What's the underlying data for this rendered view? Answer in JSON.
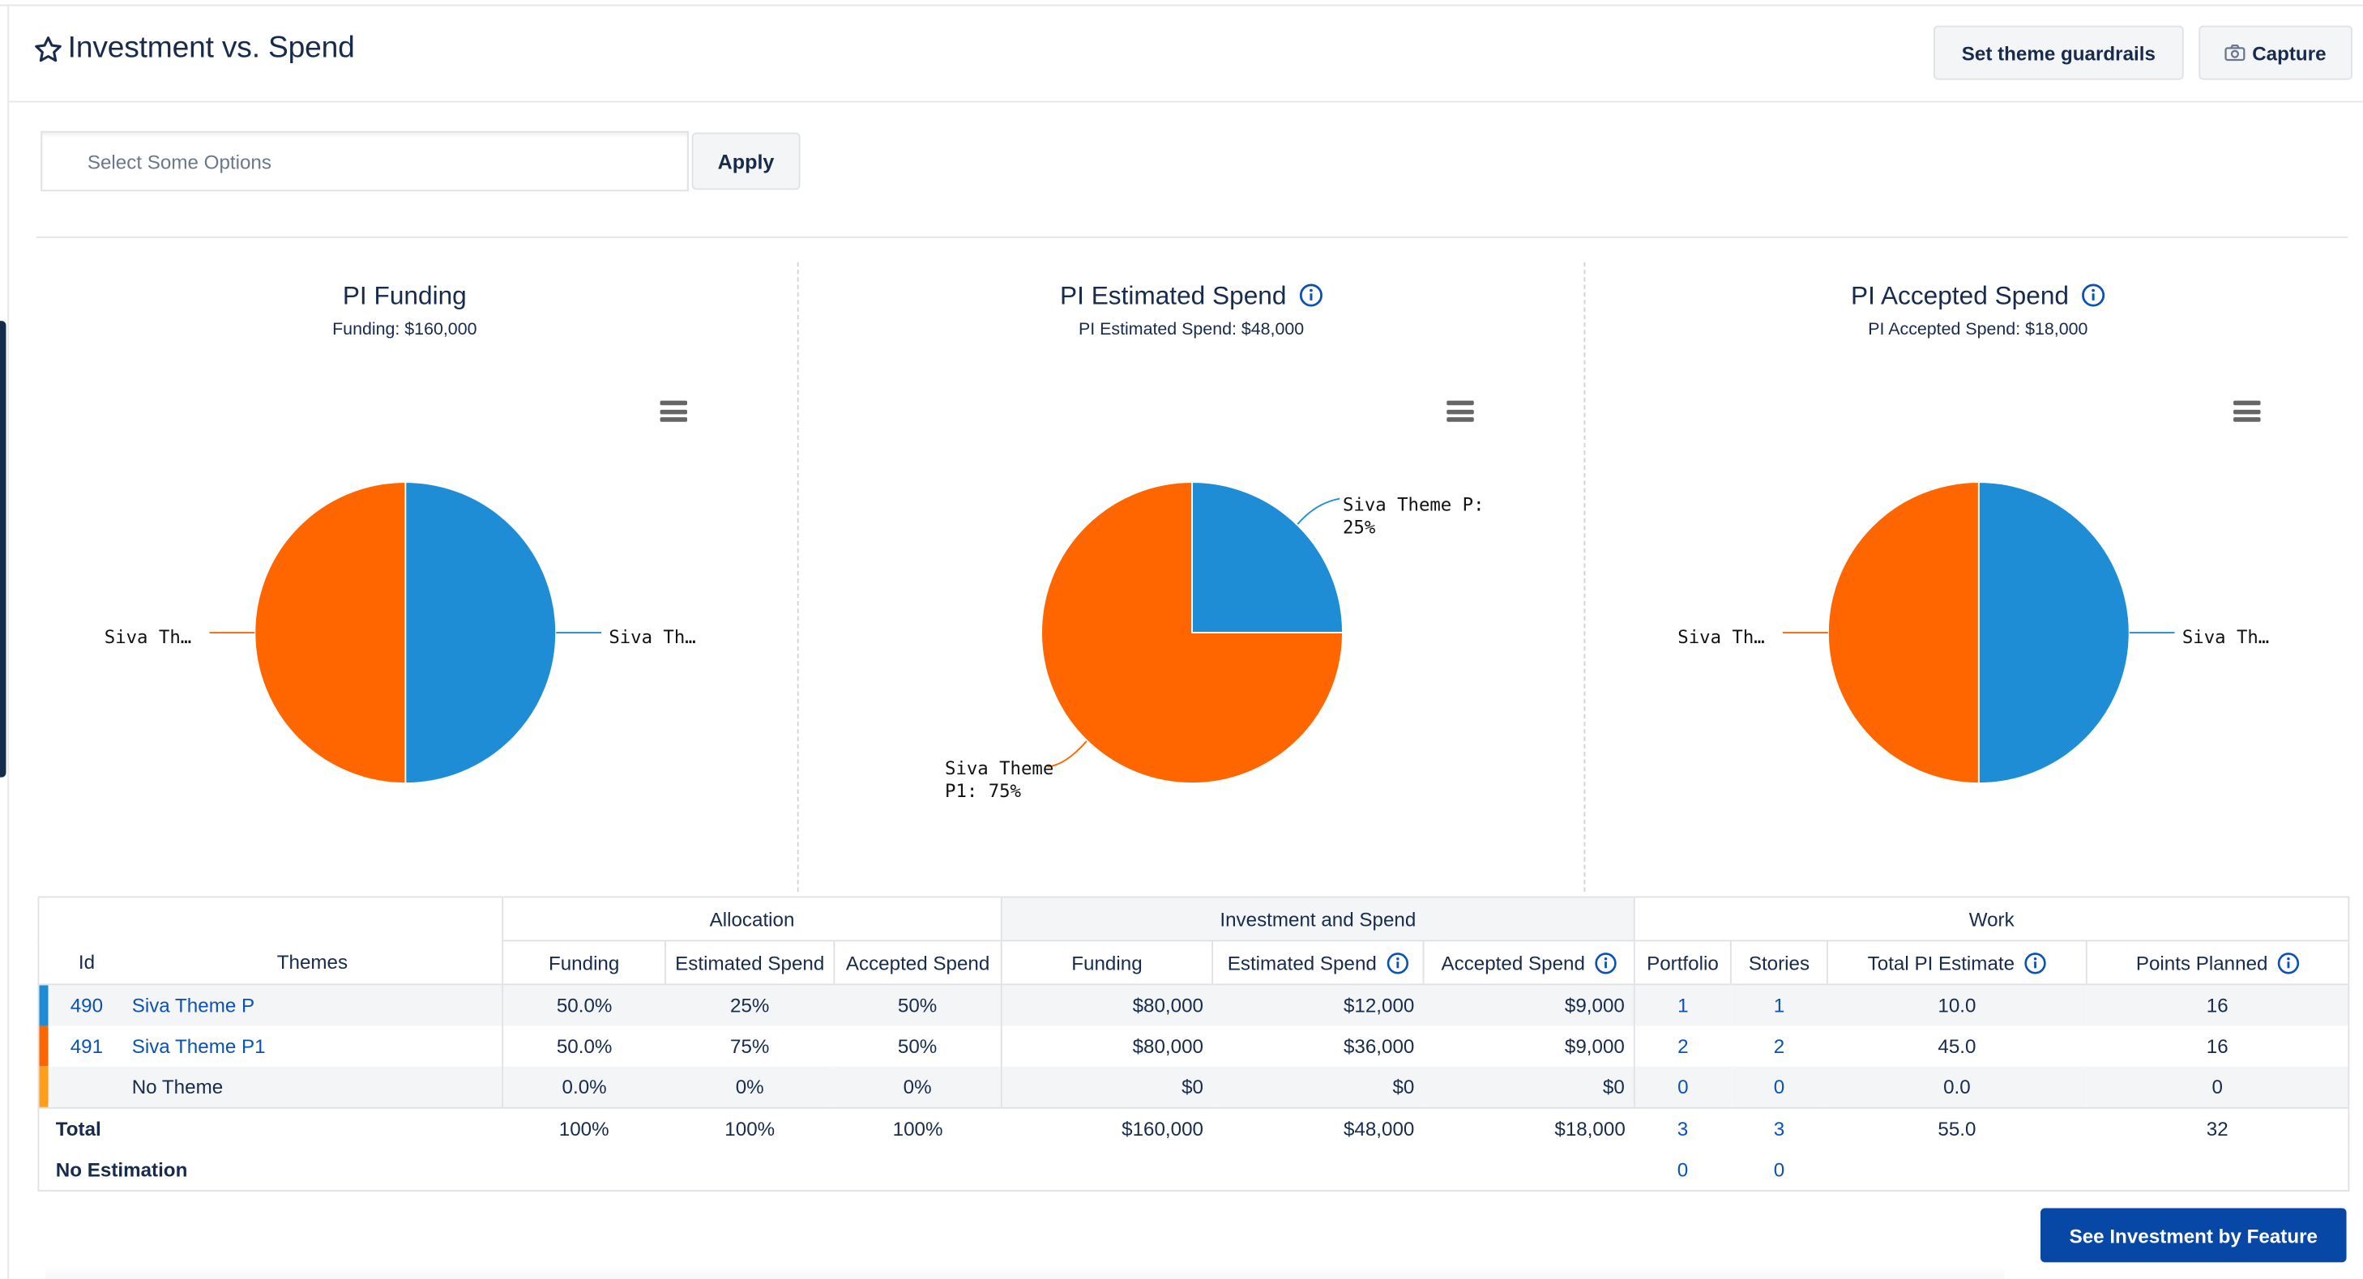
{
  "page": {
    "title": "Investment vs. Spend"
  },
  "header": {
    "guardrails_label": "Set theme guardrails",
    "capture_label": "Capture"
  },
  "filter": {
    "placeholder": "Select Some Options",
    "apply_label": "Apply"
  },
  "charts": [
    {
      "title": "PI Funding",
      "subtitle": "Funding: $160,000",
      "info": false,
      "labels": [
        "Siva Th…",
        "Siva Th…"
      ],
      "slices": [
        {
          "name": "Siva Theme P",
          "percent": 50,
          "color": "#1f8dd6"
        },
        {
          "name": "Siva Theme P1",
          "percent": 50,
          "color": "#ff6600"
        }
      ]
    },
    {
      "title": "PI Estimated Spend",
      "subtitle": "PI Estimated Spend: $48,000",
      "info": true,
      "labels": [
        "Siva Theme P:",
        "25%",
        "Siva Theme",
        "P1: 75%"
      ],
      "slices": [
        {
          "name": "Siva Theme P",
          "percent": 25,
          "color": "#1f8dd6"
        },
        {
          "name": "Siva Theme P1",
          "percent": 75,
          "color": "#ff6600"
        }
      ]
    },
    {
      "title": "PI Accepted Spend",
      "subtitle": "PI Accepted Spend: $18,000",
      "info": true,
      "labels": [
        "Siva Th…",
        "Siva Th…"
      ],
      "slices": [
        {
          "name": "Siva Theme P",
          "percent": 50,
          "color": "#1f8dd6"
        },
        {
          "name": "Siva Theme P1",
          "percent": 50,
          "color": "#ff6600"
        }
      ]
    }
  ],
  "table": {
    "groups": {
      "allocation": "Allocation",
      "investment": "Investment and Spend",
      "work": "Work"
    },
    "columns": {
      "id": "Id",
      "themes": "Themes",
      "funding": "Funding",
      "estimated": "Estimated Spend",
      "accepted": "Accepted Spend",
      "funding2": "Funding",
      "estimated2": "Estimated Spend",
      "accepted2": "Accepted Spend",
      "portfolio": "Portfolio",
      "stories": "Stories",
      "total_pi": "Total PI Estimate",
      "points": "Points Planned"
    },
    "rows": [
      {
        "color": "#1f8dd6",
        "id": "490",
        "theme": "Siva Theme P",
        "funding": "50.0%",
        "estimated": "25%",
        "accepted": "50%",
        "funding_amt": "$80,000",
        "estimated_amt": "$12,000",
        "accepted_amt": "$9,000",
        "portfolio": "1",
        "stories": "1",
        "total_pi": "10.0",
        "points": "16"
      },
      {
        "color": "#ff6600",
        "id": "491",
        "theme": "Siva Theme P1",
        "funding": "50.0%",
        "estimated": "75%",
        "accepted": "50%",
        "funding_amt": "$80,000",
        "estimated_amt": "$36,000",
        "accepted_amt": "$9,000",
        "portfolio": "2",
        "stories": "2",
        "total_pi": "45.0",
        "points": "16"
      },
      {
        "color": "#ff9e1b",
        "id": "",
        "theme": "No Theme",
        "funding": "0.0%",
        "estimated": "0%",
        "accepted": "0%",
        "funding_amt": "$0",
        "estimated_amt": "$0",
        "accepted_amt": "$0",
        "portfolio": "0",
        "stories": "0",
        "total_pi": "0.0",
        "points": "0"
      }
    ],
    "total": {
      "label": "Total",
      "funding": "100%",
      "estimated": "100%",
      "accepted": "100%",
      "funding_amt": "$160,000",
      "estimated_amt": "$48,000",
      "accepted_amt": "$18,000",
      "portfolio": "3",
      "stories": "3",
      "total_pi": "55.0",
      "points": "32"
    },
    "no_estimation": {
      "label": "No Estimation",
      "portfolio": "0",
      "stories": "0"
    }
  },
  "footer": {
    "feature_button": "See Investment by Feature"
  },
  "icons": [
    "star-icon",
    "camera-icon",
    "info-icon",
    "hamburger-menu-icon"
  ],
  "colors": {
    "accent": "#0747a6",
    "theme_p": "#1f8dd6",
    "theme_p1": "#ff6600",
    "no_theme": "#ff9e1b"
  }
}
